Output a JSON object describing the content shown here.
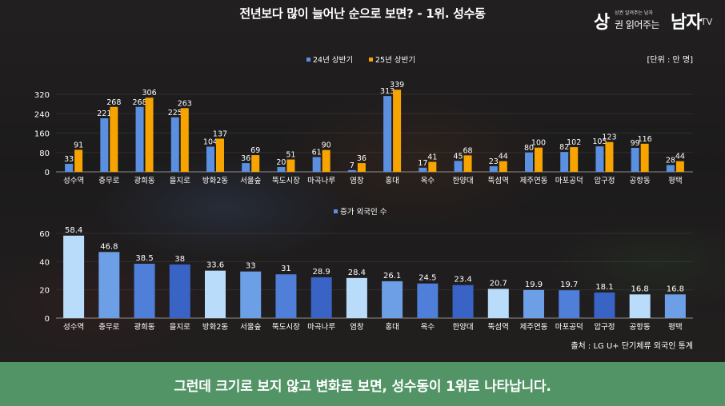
{
  "header": {
    "title": "전년보다 많이 늘어난 순으로 보면? - 1위. 성수동"
  },
  "logo": {
    "main": "상",
    "small": "상권 알려주는 남자",
    "mid": "권 읽어주는",
    "right": "남자",
    "tv": "TV"
  },
  "subtitle": "그런데 크기로 보지 않고 변화로 보면, 성수동이 1위로 나타납니다.",
  "colors": {
    "blue": "#5b8fe0",
    "orange": "#f7a400",
    "subtitle_bg": "#539466"
  },
  "chart_data": [
    {
      "type": "bar",
      "unit_note": "[단위 : 만 명]",
      "categories": [
        "성수역",
        "충무로",
        "광희동",
        "을지로",
        "방화2동",
        "서울숲",
        "뚝도시장",
        "마곡나루",
        "염창",
        "홍대",
        "옥수",
        "한양대",
        "뚝섬역",
        "제주연동",
        "마포공덕",
        "압구정",
        "공항동",
        "평택"
      ],
      "series": [
        {
          "name": "24년 상반기",
          "color": "#5b8fe0",
          "values": [
            33,
            221,
            268,
            225,
            104,
            36,
            20,
            61,
            7,
            313,
            17,
            45,
            23,
            80,
            82,
            105,
            99,
            28
          ]
        },
        {
          "name": "25년 상반기",
          "color": "#f7a400",
          "values": [
            91,
            268,
            306,
            263,
            137,
            69,
            51,
            90,
            36,
            339,
            41,
            68,
            44,
            100,
            102,
            123,
            116,
            44
          ]
        }
      ],
      "yticks": [
        0,
        80,
        160,
        240,
        320
      ],
      "ylim": [
        0,
        340
      ],
      "legend": "top-center"
    },
    {
      "type": "bar",
      "categories": [
        "성수역",
        "충무로",
        "광희동",
        "을지로",
        "방화2동",
        "서울숲",
        "뚝도시장",
        "마곡나루",
        "염창",
        "홍대",
        "옥수",
        "한양대",
        "뚝섬역",
        "제주연동",
        "마포공덕",
        "압구정",
        "공항동",
        "평택"
      ],
      "series": [
        {
          "name": "증가 외국인 수",
          "values": [
            58.4,
            46.8,
            38.5,
            38,
            33.6,
            33,
            31,
            28.9,
            28.4,
            26.1,
            24.5,
            23.4,
            20.7,
            19.9,
            19.7,
            18.1,
            16.8,
            16.8
          ]
        }
      ],
      "bar_colors": [
        "#b9dcfb",
        "#6d9fe6",
        "#4f7fd8",
        "#3963c4",
        "#b9dcfb",
        "#6d9fe6",
        "#4f7fd8",
        "#3963c4",
        "#b9dcfb",
        "#6d9fe6",
        "#4f7fd8",
        "#3963c4",
        "#b9dcfb",
        "#6d9fe6",
        "#4f7fd8",
        "#3963c4",
        "#b9dcfb",
        "#6d9fe6"
      ],
      "yticks": [
        0,
        20,
        40,
        60
      ],
      "ylim": [
        0,
        65
      ],
      "source": "출처 : LG U+ 단기체류 외국인 통계",
      "legend": "top-center"
    }
  ]
}
